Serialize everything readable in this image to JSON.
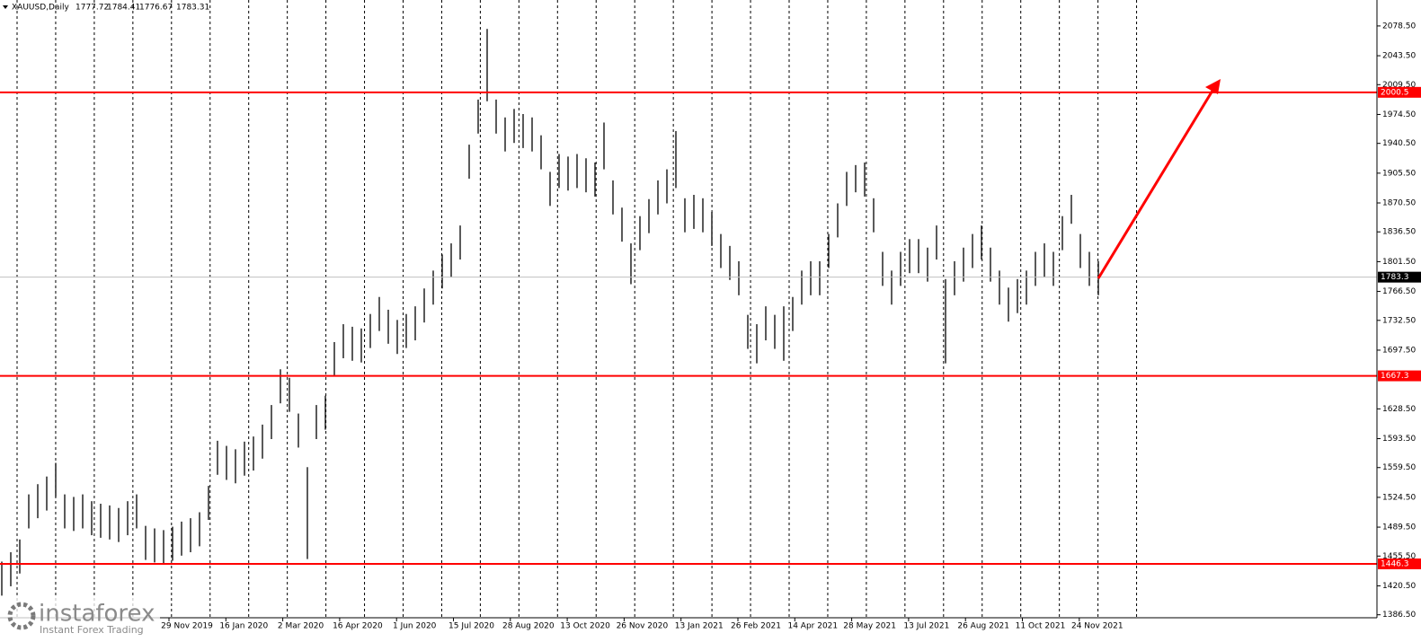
{
  "chart_data": {
    "type": "hilo",
    "symbol": "XAUUSD,Daily",
    "last_open": 1777.72,
    "last_high": 1784.41,
    "last_low": 1776.67,
    "last_close": 1783.31,
    "brand": "instaforex",
    "brand_tagline": "Instant Forex Trading",
    "ylim": [
      1383,
      2109
    ],
    "yticks": [
      {
        "value": 2078.5,
        "label": "2078.50"
      },
      {
        "value": 2043.5,
        "label": "2043.50"
      },
      {
        "value": 2009.5,
        "label": "2009.50"
      },
      {
        "value": 1974.5,
        "label": "1974.50"
      },
      {
        "value": 1940.5,
        "label": "1940.50"
      },
      {
        "value": 1905.5,
        "label": "1905.50"
      },
      {
        "value": 1870.5,
        "label": "1870.50"
      },
      {
        "value": 1836.5,
        "label": "1836.50"
      },
      {
        "value": 1801.5,
        "label": "1801.50"
      },
      {
        "value": 1766.5,
        "label": "1766.50"
      },
      {
        "value": 1732.5,
        "label": "1732.50"
      },
      {
        "value": 1697.5,
        "label": "1697.50"
      },
      {
        "value": 1628.5,
        "label": "1628.50"
      },
      {
        "value": 1593.5,
        "label": "1593.50"
      },
      {
        "value": 1559.5,
        "label": "1559.50"
      },
      {
        "value": 1524.5,
        "label": "1524.50"
      },
      {
        "value": 1489.5,
        "label": "1489.50"
      },
      {
        "value": 1455.5,
        "label": "1455.50"
      },
      {
        "value": 1420.5,
        "label": "1420.50"
      },
      {
        "value": 1386.5,
        "label": "1386.50"
      }
    ],
    "x_labels": [
      "29 Nov 2019",
      "16 Jan 2020",
      "2 Mar 2020",
      "16 Apr 2020",
      "1 Jun 2020",
      "15 Jul 2020",
      "28 Aug 2020",
      "13 Oct 2020",
      "26 Nov 2020",
      "13 Jan 2021",
      "26 Feb 2021",
      "14 Apr 2021",
      "28 May 2021",
      "13 Jul 2021",
      "26 Aug 2021",
      "11 Oct 2021",
      "24 Nov 2021"
    ],
    "levels": [
      2000.5,
      1667.3,
      1446.3
    ],
    "level_color": "#ff0000",
    "current_price": 1783.3,
    "color": "#000000",
    "high": [
      1449,
      1460,
      1475,
      1528,
      1540,
      1549,
      1565,
      1528,
      1525,
      1528,
      1520,
      1517,
      1515,
      1512,
      1520,
      1528,
      1491,
      1488,
      1486,
      1490,
      1496,
      1500,
      1507,
      1538,
      1591,
      1585,
      1581,
      1590,
      1596,
      1610,
      1633,
      1675,
      1665,
      1623,
      1560,
      1633,
      1644,
      1707,
      1728,
      1725,
      1723,
      1740,
      1760,
      1745,
      1733,
      1740,
      1749,
      1770,
      1791,
      1810,
      1823,
      1844,
      1939,
      1992,
      2075,
      1992,
      1971,
      1981,
      1975,
      1971,
      1950,
      1907,
      1928,
      1925,
      1928,
      1923,
      1918,
      1965,
      1897,
      1865,
      1823,
      1855,
      1875,
      1897,
      1910,
      1955,
      1876,
      1880,
      1876,
      1860,
      1834,
      1820,
      1802,
      1739,
      1728,
      1749,
      1739,
      1749,
      1760,
      1791,
      1802,
      1802,
      1834,
      1870,
      1907,
      1915,
      1918,
      1876,
      1813,
      1791,
      1813,
      1828,
      1828,
      1818,
      1844,
      1781,
      1802,
      1818,
      1834,
      1844,
      1818,
      1791,
      1771,
      1781,
      1791,
      1813,
      1823,
      1813,
      1855,
      1880,
      1834,
      1813,
      1802
    ],
    "low": [
      1409,
      1420,
      1435,
      1488,
      1500,
      1509,
      1525,
      1488,
      1485,
      1488,
      1480,
      1477,
      1475,
      1472,
      1480,
      1488,
      1451,
      1448,
      1446,
      1450,
      1456,
      1460,
      1467,
      1498,
      1551,
      1545,
      1541,
      1550,
      1556,
      1570,
      1593,
      1635,
      1625,
      1583,
      1452,
      1593,
      1604,
      1667,
      1688,
      1685,
      1683,
      1700,
      1720,
      1705,
      1693,
      1700,
      1709,
      1730,
      1751,
      1770,
      1783,
      1804,
      1899,
      1952,
      1990,
      1952,
      1931,
      1941,
      1935,
      1931,
      1910,
      1867,
      1888,
      1885,
      1888,
      1883,
      1878,
      1910,
      1857,
      1825,
      1775,
      1815,
      1835,
      1857,
      1870,
      1888,
      1836,
      1840,
      1836,
      1820,
      1794,
      1780,
      1762,
      1699,
      1682,
      1709,
      1699,
      1685,
      1720,
      1751,
      1762,
      1762,
      1794,
      1830,
      1867,
      1883,
      1878,
      1836,
      1773,
      1751,
      1773,
      1788,
      1788,
      1778,
      1804,
      1682,
      1762,
      1778,
      1794,
      1804,
      1778,
      1751,
      1731,
      1741,
      1751,
      1773,
      1783,
      1773,
      1815,
      1846,
      1794,
      1773,
      1762
    ]
  }
}
